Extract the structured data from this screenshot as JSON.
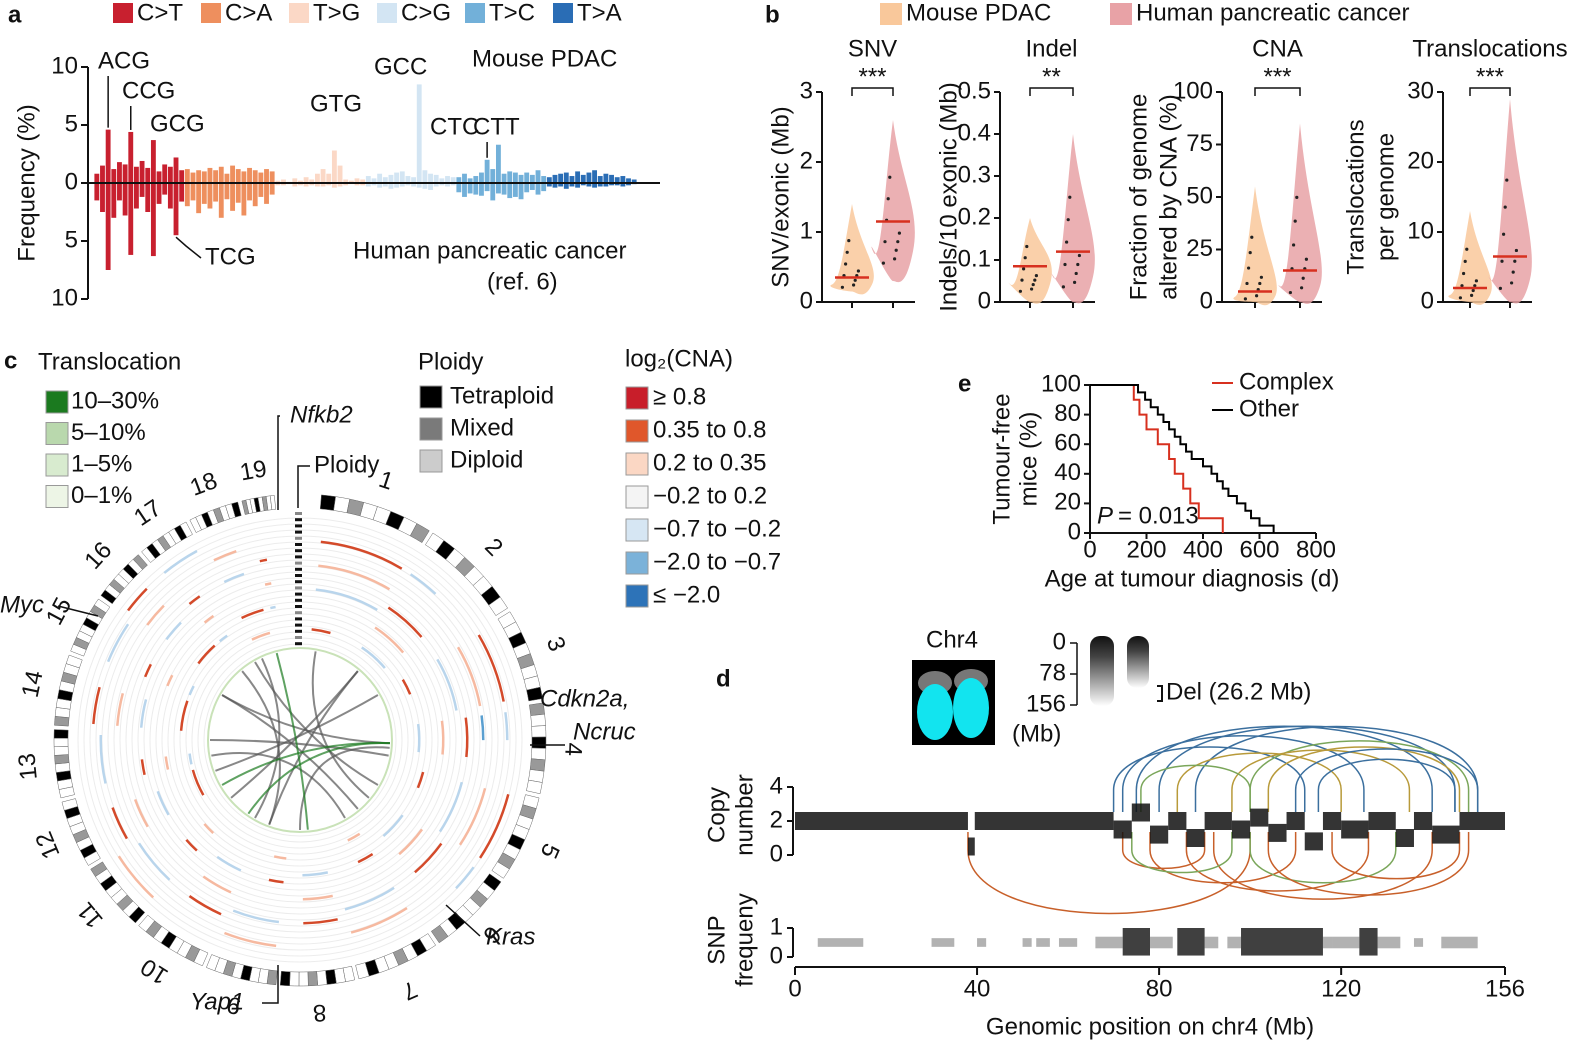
{
  "legend_b": {
    "series": [
      {
        "name": "Mouse PDAC",
        "color": "#f9c89b"
      },
      {
        "name": "Human pancreatic cancer",
        "color": "#e8a2a6"
      }
    ]
  },
  "panel_c": {
    "panel": "c",
    "translocation": {
      "title": "Translocation",
      "items": [
        {
          "label": "10–30%",
          "color": "#1b7a1f"
        },
        {
          "label": "5–10%",
          "color": "#b9d8ad"
        },
        {
          "label": "1–5%",
          "color": "#d8ebcf"
        },
        {
          "label": "0–1%",
          "color": "#edf5e6"
        }
      ]
    },
    "ploidy": {
      "title": "Ploidy",
      "items": [
        {
          "label": "Tetraploid",
          "color": "#000000"
        },
        {
          "label": "Mixed",
          "color": "#7a7a7a"
        },
        {
          "label": "Diploid",
          "color": "#cccccc"
        }
      ]
    },
    "cna": {
      "title": "log₂(CNA)",
      "items": [
        {
          "label": "≥ 0.8",
          "color": "#c81e2a"
        },
        {
          "label": "0.35  to 0.8",
          "color": "#e0572b"
        },
        {
          "label": "0.2  to 0.35",
          "color": "#fbd7c4"
        },
        {
          "label": "−0.2 to 0.2",
          "color": "#f4f4f4"
        },
        {
          "label": "−0.7 to −0.2",
          "color": "#d6e6f3"
        },
        {
          "label": "−2.0 to −0.7",
          "color": "#7bb2d9"
        },
        {
          "label": "≤ −2.0",
          "color": "#2d73b8"
        }
      ]
    },
    "chromosomes": [
      "1",
      "2",
      "3",
      "4",
      "5",
      "6",
      "7",
      "8",
      "9",
      "10",
      "11",
      "12",
      "13",
      "14",
      "15",
      "16",
      "17",
      "18",
      "19"
    ],
    "genes": [
      "Nfkb2",
      "Myc",
      "Cdkn2a,",
      "Ncruc",
      "Kras",
      "Yap1"
    ],
    "ploidy_track": "Ploidy"
  },
  "chart_data": [
    {
      "panel": "a",
      "type": "mirrored_bar",
      "upper_label": "Mouse PDAC",
      "lower_label": [
        "Human pancreatic cancer",
        "(ref. 6)"
      ],
      "ylabel": "Frequency (%)",
      "ylim": [
        -10,
        10
      ],
      "yticks": [
        {
          "value": -10,
          "label": "10"
        },
        {
          "value": -5,
          "label": "5"
        },
        0,
        5,
        10
      ],
      "annotations": [
        "ACG",
        "CCG",
        "GCG",
        "TCG",
        "GTG",
        "GCC",
        "CTC",
        "CTT"
      ],
      "series": [
        {
          "name": "C>T",
          "color": "#c8202f",
          "values": [
            0.8,
            1.5,
            4.6,
            1.2,
            1.8,
            1.6,
            4.4,
            1.4,
            1.9,
            1.3,
            3.7,
            1.0,
            1.6,
            1.4,
            2.2,
            1.1
          ],
          "lower_values": [
            -1.5,
            -2.5,
            -7.5,
            -3.0,
            -1.5,
            -2.8,
            -6.2,
            -2.2,
            -1.2,
            -2.5,
            -6.3,
            -1.8,
            -1.0,
            -2.2,
            -4.5,
            -1.6
          ]
        },
        {
          "name": "C>A",
          "color": "#ee8f5e",
          "values": [
            1.2,
            0.9,
            1.1,
            1.0,
            1.3,
            1.1,
            1.4,
            0.8,
            1.5,
            1.2,
            1.0,
            1.3,
            1.1,
            0.9,
            1.2,
            1.0
          ],
          "lower_values": [
            -2.0,
            -1.5,
            -2.6,
            -1.8,
            -2.2,
            -1.6,
            -3.0,
            -1.4,
            -2.4,
            -1.7,
            -2.8,
            -1.5,
            -2.0,
            -1.2,
            -1.8,
            -1.0
          ]
        },
        {
          "name": "T>G",
          "color": "#fbd8c6",
          "values": [
            0.2,
            0.3,
            0.1,
            0.4,
            0.2,
            0.5,
            0.3,
            0.8,
            1.2,
            0.8,
            2.8,
            1.5,
            0.3,
            0.2,
            0.4,
            0.3
          ],
          "lower_values": [
            -0.2,
            -0.2,
            -0.1,
            -0.3,
            -0.2,
            -0.3,
            -0.2,
            -0.3,
            -0.3,
            -0.2,
            -0.4,
            -0.3,
            -0.2,
            -0.1,
            -0.2,
            -0.2
          ]
        },
        {
          "name": "C>G",
          "color": "#d3e5f3",
          "values": [
            0.6,
            0.4,
            0.8,
            0.5,
            0.7,
            0.9,
            1.0,
            0.6,
            0.5,
            8.5,
            1.1,
            0.8,
            0.7,
            0.4,
            0.6,
            0.5
          ],
          "lower_values": [
            -0.3,
            -0.2,
            -0.4,
            -0.3,
            -0.5,
            -0.4,
            -0.3,
            -0.2,
            -0.3,
            -0.4,
            -0.5,
            -0.6,
            -0.3,
            -0.2,
            -0.3,
            -0.2
          ]
        },
        {
          "name": "T>C",
          "color": "#72b0d9",
          "values": [
            0.5,
            0.8,
            0.4,
            0.6,
            0.9,
            2.0,
            1.2,
            3.3,
            0.8,
            1.0,
            0.9,
            0.7,
            0.9,
            0.7,
            1.1,
            0.6
          ],
          "lower_values": [
            -0.8,
            -1.2,
            -0.9,
            -1.0,
            -1.1,
            -0.7,
            -1.5,
            -0.9,
            -1.0,
            -1.3,
            -1.2,
            -1.4,
            -0.8,
            -0.6,
            -1.0,
            -0.7
          ]
        },
        {
          "name": "T>A",
          "color": "#2a6db5",
          "values": [
            0.5,
            0.7,
            0.8,
            0.9,
            0.6,
            1.0,
            0.7,
            0.9,
            1.1,
            0.6,
            0.8,
            0.7,
            0.5,
            0.6,
            0.4,
            0.3
          ],
          "lower_values": [
            -0.3,
            -0.4,
            -0.3,
            -0.5,
            -0.3,
            -0.4,
            -0.2,
            -0.3,
            -0.4,
            -0.3,
            -0.3,
            -0.2,
            -0.2,
            -0.3,
            -0.2,
            -0.1
          ]
        }
      ]
    },
    {
      "panel": "b",
      "type": "violin",
      "title": "SNV",
      "ylabel": [
        "SNV/exonic (Mb)"
      ],
      "ylim": [
        0,
        3
      ],
      "yticks": [
        0,
        1,
        2,
        3
      ],
      "medians": [
        0.35,
        1.15
      ],
      "ranges": [
        [
          0.15,
          1.4
        ],
        [
          0.3,
          2.6
        ]
      ],
      "significance": "***"
    },
    {
      "type": "violin",
      "title": "Indel",
      "ylabel": [
        "Indels/10 exonic (Mb)"
      ],
      "ylim": [
        0,
        0.5
      ],
      "yticks": [
        0,
        0.1,
        0.2,
        0.3,
        0.4,
        0.5
      ],
      "medians": [
        0.085,
        0.12
      ],
      "ranges": [
        [
          0,
          0.2
        ],
        [
          0,
          0.4
        ]
      ],
      "significance": "**"
    },
    {
      "type": "violin",
      "title": "CNA",
      "ylabel": [
        "Fraction of genome",
        "altered by CNA (%)"
      ],
      "ylim": [
        0,
        100
      ],
      "yticks": [
        0,
        25,
        50,
        75,
        100
      ],
      "medians": [
        5,
        15
      ],
      "ranges": [
        [
          0,
          55
        ],
        [
          0,
          85
        ]
      ],
      "significance": "***"
    },
    {
      "type": "violin",
      "title": "Translocations",
      "ylabel": [
        "Translocations",
        "per genome"
      ],
      "ylim": [
        0,
        30
      ],
      "yticks": [
        0,
        10,
        20,
        30
      ],
      "medians": [
        2,
        6.5
      ],
      "ranges": [
        [
          0,
          13
        ],
        [
          0,
          29
        ]
      ],
      "significance": "***"
    },
    {
      "panel": "e",
      "type": "step_line",
      "ylabel": [
        "Tumour-free",
        "mice (%)"
      ],
      "xlabel": "Age at tumour diagnosis (d)",
      "xlim": [
        0,
        800
      ],
      "xticks": [
        0,
        200,
        400,
        600,
        800
      ],
      "ylim": [
        0,
        100
      ],
      "yticks": [
        0,
        20,
        40,
        60,
        80,
        100
      ],
      "annotation": [
        "P",
        "= 0.013"
      ],
      "series": [
        {
          "name": "Complex",
          "color": "#d7301f",
          "x": [
            0,
            155,
            155,
            175,
            175,
            200,
            200,
            240,
            240,
            280,
            280,
            300,
            300,
            330,
            330,
            355,
            355,
            385,
            385,
            470,
            470
          ],
          "values": [
            100,
            100,
            90,
            90,
            80,
            80,
            70,
            70,
            60,
            60,
            50,
            50,
            40,
            40,
            30,
            30,
            20,
            20,
            10,
            10,
            0
          ]
        },
        {
          "name": "Other",
          "color": "#000000",
          "x": [
            0,
            170,
            170,
            195,
            195,
            215,
            215,
            240,
            240,
            260,
            260,
            280,
            280,
            300,
            300,
            320,
            320,
            340,
            340,
            360,
            360,
            400,
            400,
            430,
            430,
            450,
            450,
            470,
            470,
            490,
            490,
            520,
            520,
            550,
            550,
            570,
            570,
            600,
            600,
            650,
            650
          ],
          "values": [
            100,
            100,
            95,
            95,
            90,
            90,
            85,
            85,
            80,
            80,
            75,
            75,
            70,
            70,
            65,
            65,
            60,
            60,
            55,
            55,
            50,
            50,
            45,
            45,
            40,
            40,
            35,
            35,
            30,
            30,
            25,
            25,
            20,
            20,
            15,
            15,
            10,
            10,
            5,
            5,
            0
          ]
        }
      ]
    },
    {
      "panel": "d",
      "type": "copy_number",
      "inset_title": "Chr4",
      "gel_ticks": [
        0,
        78,
        156
      ],
      "gel_unit": "(Mb)",
      "deletion_label": "Del (26.2 Mb)",
      "ylabel": [
        "Copy",
        "number"
      ],
      "ylim": [
        0,
        4
      ],
      "yticks": [
        0,
        2,
        4
      ],
      "xlabel": "Genomic position on chr4 (Mb)",
      "xlim": [
        0,
        156
      ],
      "xticks": [
        0,
        40,
        80,
        120,
        156
      ],
      "segments": {
        "starts": [
          0,
          38,
          39.5,
          70,
          74,
          78,
          82,
          86,
          90,
          96,
          100,
          104,
          108,
          112,
          116,
          120,
          126,
          132,
          136,
          140,
          146
        ],
        "ends": [
          38,
          39.5,
          70,
          74,
          78,
          82,
          86,
          90,
          96,
          100,
          104,
          108,
          112,
          116,
          120,
          126,
          132,
          136,
          140,
          146,
          156
        ],
        "values": [
          2,
          0.5,
          2,
          1.5,
          2.5,
          1.2,
          2,
          1,
          2,
          1.5,
          2.2,
          1.3,
          2,
          0.8,
          2,
          1.5,
          2,
          1,
          2,
          1.2,
          2
        ]
      },
      "rearrangements": [
        {
          "from": 70,
          "to": 112,
          "color": "#3b6f9e",
          "side": "above"
        },
        {
          "from": 72,
          "to": 125,
          "color": "#3b6f9e",
          "side": "above"
        },
        {
          "from": 75,
          "to": 140,
          "color": "#3b6f9e",
          "side": "above"
        },
        {
          "from": 80,
          "to": 145,
          "color": "#3b6f9e",
          "side": "above"
        },
        {
          "from": 88,
          "to": 150,
          "color": "#3b6f9e",
          "side": "above"
        },
        {
          "from": 100,
          "to": 148,
          "color": "#7aa65a",
          "side": "above"
        },
        {
          "from": 96,
          "to": 135,
          "color": "#b89a3a",
          "side": "above"
        },
        {
          "from": 104,
          "to": 146,
          "color": "#b89a3a",
          "side": "above"
        },
        {
          "from": 84,
          "to": 120,
          "color": "#b89a3a",
          "side": "above"
        },
        {
          "from": 110,
          "to": 150,
          "color": "#3b6f9e",
          "side": "above"
        },
        {
          "from": 76,
          "to": 100,
          "color": "#7aa65a",
          "side": "above"
        },
        {
          "from": 115,
          "to": 145,
          "color": "#3b6f9e",
          "side": "above"
        },
        {
          "from": 38,
          "to": 100,
          "color": "#c8602a",
          "side": "below"
        },
        {
          "from": 72,
          "to": 90,
          "color": "#c8602a",
          "side": "below"
        },
        {
          "from": 78,
          "to": 110,
          "color": "#c8602a",
          "side": "below"
        },
        {
          "from": 86,
          "to": 126,
          "color": "#c8602a",
          "side": "below"
        },
        {
          "from": 92,
          "to": 140,
          "color": "#c8602a",
          "side": "below"
        },
        {
          "from": 100,
          "to": 132,
          "color": "#7aa65a",
          "side": "below"
        },
        {
          "from": 104,
          "to": 148,
          "color": "#c8602a",
          "side": "below"
        },
        {
          "from": 118,
          "to": 146,
          "color": "#c8602a",
          "side": "below"
        },
        {
          "from": 74,
          "to": 96,
          "color": "#7aa65a",
          "side": "below"
        }
      ],
      "snp": {
        "ylabel": [
          "SNP",
          "frequeny"
        ],
        "ylim": [
          0,
          1
        ],
        "yticks": [
          0,
          1
        ],
        "starts": [
          5,
          30,
          40,
          50,
          53,
          58,
          66,
          72,
          78,
          84,
          90,
          95,
          98,
          116,
          118,
          124,
          128,
          136,
          142
        ],
        "ends": [
          15,
          35,
          42,
          52,
          56,
          62,
          72,
          78,
          83,
          90,
          93,
          98,
          116,
          118,
          124,
          128,
          133,
          138,
          150
        ],
        "low": [
          0.35,
          0.35,
          0.35,
          0.35,
          0.35,
          0.35,
          0.3,
          0.05,
          0.3,
          0.05,
          0.3,
          0.3,
          0.05,
          0.3,
          0.3,
          0.05,
          0.3,
          0.35,
          0.3
        ],
        "high": [
          0.65,
          0.65,
          0.65,
          0.65,
          0.65,
          0.65,
          0.7,
          1,
          0.7,
          1,
          0.7,
          0.7,
          1,
          0.7,
          0.7,
          1,
          0.7,
          0.65,
          0.7
        ]
      }
    }
  ]
}
